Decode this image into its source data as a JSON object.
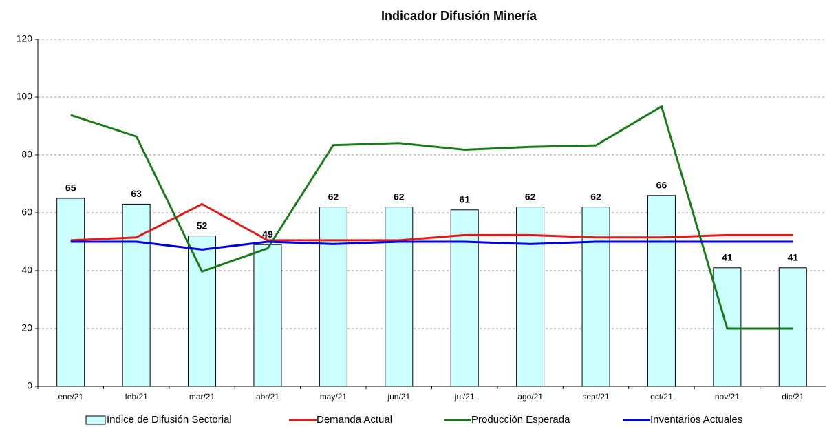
{
  "chart_data": {
    "type": "combo",
    "title": "Indicador Difusión Minería",
    "categories": [
      "ene/21",
      "feb/21",
      "mar/21",
      "abr/21",
      "may/21",
      "jun/21",
      "jul/21",
      "ago/21",
      "sept/21",
      "oct/21",
      "nov/21",
      "dic/21"
    ],
    "series": [
      {
        "name": "Indice de Difusión Sectorial",
        "type": "bar",
        "color": "#ccffff",
        "values": [
          65,
          63,
          52,
          49,
          62,
          62,
          61,
          62,
          62,
          66,
          41,
          41
        ]
      },
      {
        "name": "Demanda Actual",
        "type": "line",
        "color": "#e31a1c",
        "values": [
          50.5,
          51.5,
          63,
          50.5,
          50.5,
          50.5,
          52.3,
          52.3,
          51.5,
          51.5,
          52.3,
          52.3
        ]
      },
      {
        "name": "Producción Esperada",
        "type": "line",
        "color": "#1a7a1a",
        "values": [
          93.8,
          86.4,
          39.7,
          47.7,
          83.4,
          84.1,
          81.8,
          82.8,
          83.3,
          96.8,
          20,
          20
        ]
      },
      {
        "name": "Inventarios Actuales",
        "type": "line",
        "color": "#0000e0",
        "values": [
          50,
          50,
          47.3,
          50,
          49.2,
          50,
          50,
          49.2,
          50,
          50,
          50,
          50
        ]
      }
    ],
    "ylim": [
      0,
      120
    ],
    "yticks": [
      0,
      20,
      40,
      60,
      80,
      100,
      120
    ],
    "grid": true,
    "legend": "bottom"
  }
}
